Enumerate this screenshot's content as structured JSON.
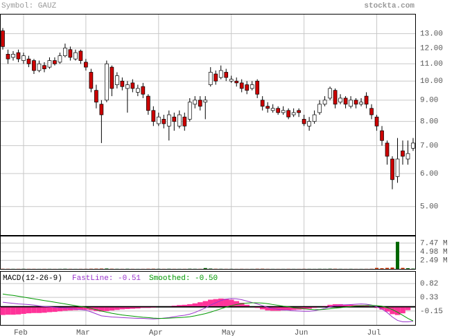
{
  "header": {
    "symbol": "Symbol: GAUZ",
    "site": "stockta.com"
  },
  "chart_data": [
    {
      "type": "candlestick",
      "categories": [
        null,
        null,
        null,
        null,
        "Feb",
        null,
        null,
        null,
        null,
        null,
        null,
        null,
        null,
        null,
        null,
        null,
        "Mar",
        null,
        null,
        null,
        null,
        null,
        null,
        null,
        null,
        null,
        null,
        null,
        null,
        null,
        "Apr",
        null,
        null,
        null,
        null,
        null,
        null,
        null,
        null,
        null,
        null,
        null,
        null,
        null,
        "May",
        null,
        null,
        null,
        null,
        null,
        null,
        null,
        null,
        null,
        null,
        null,
        null,
        null,
        "Jun",
        null,
        null,
        null,
        null,
        null,
        null,
        null,
        null,
        null,
        null,
        null,
        null,
        null,
        "Jul",
        null,
        null,
        null,
        null,
        null,
        null,
        null
      ],
      "open": [
        13.2,
        11.6,
        11.4,
        11.7,
        11.2,
        11.3,
        11.2,
        10.6,
        10.9,
        10.8,
        11.2,
        11.1,
        11.5,
        11.9,
        11.3,
        11.8,
        11.1,
        10.5,
        9.5,
        8.8,
        9.0,
        10.8,
        9.8,
        10.0,
        9.6,
        9.9,
        9.4,
        9.7,
        9.2,
        8.5,
        7.9,
        8.1,
        7.8,
        8.2,
        7.8,
        8.2,
        8.1,
        8.8,
        9.0,
        8.9,
        9.8,
        10.4,
        10.2,
        10.5,
        10.0,
        10.0,
        9.9,
        9.8,
        9.6,
        10.0,
        9.0,
        8.7,
        8.5,
        8.6,
        8.4,
        8.5,
        8.3,
        8.5,
        8.1,
        7.8,
        8.0,
        8.4,
        8.8,
        9.1,
        9.5,
        8.9,
        9.1,
        8.7,
        9.0,
        8.8,
        9.2,
        8.6,
        8.2,
        7.6,
        7.1,
        6.5,
        5.9,
        6.8,
        6.5,
        6.9
      ],
      "high": [
        13.4,
        11.9,
        11.8,
        11.9,
        11.7,
        11.5,
        11.3,
        11.2,
        11.1,
        11.4,
        11.4,
        11.7,
        12.3,
        12.1,
        11.9,
        11.9,
        11.3,
        10.7,
        9.8,
        9.0,
        11.2,
        10.9,
        10.5,
        10.2,
        10.0,
        10.1,
        9.8,
        9.9,
        9.3,
        8.7,
        8.4,
        8.3,
        8.5,
        8.4,
        8.5,
        8.4,
        9.1,
        9.2,
        9.2,
        9.2,
        10.8,
        10.6,
        10.9,
        10.7,
        10.3,
        10.2,
        10.1,
        10.0,
        10.0,
        10.1,
        9.2,
        8.9,
        8.8,
        8.7,
        8.7,
        8.6,
        8.6,
        8.6,
        8.3,
        8.2,
        8.5,
        9.0,
        9.2,
        9.7,
        9.6,
        9.3,
        9.2,
        9.2,
        9.1,
        9.1,
        9.4,
        8.8,
        8.3,
        7.8,
        7.2,
        6.6,
        7.3,
        7.2,
        7.2,
        7.3
      ],
      "low": [
        11.9,
        11.0,
        11.2,
        11.1,
        11.0,
        10.8,
        10.4,
        10.5,
        10.5,
        10.7,
        10.9,
        11.0,
        11.4,
        11.2,
        11.2,
        11.0,
        10.6,
        9.4,
        8.6,
        7.1,
        8.9,
        9.2,
        9.6,
        9.5,
        8.4,
        9.4,
        9.2,
        9.1,
        8.3,
        7.8,
        7.8,
        7.7,
        7.2,
        7.6,
        7.7,
        7.6,
        8.0,
        8.6,
        8.5,
        8.1,
        9.7,
        9.8,
        10.1,
        10.0,
        9.9,
        9.7,
        9.4,
        9.3,
        9.5,
        9.1,
        8.5,
        8.4,
        8.4,
        8.3,
        8.3,
        8.1,
        8.2,
        8.2,
        7.8,
        7.6,
        7.9,
        8.3,
        8.7,
        9.0,
        8.6,
        8.8,
        8.6,
        8.6,
        8.6,
        8.7,
        8.6,
        8.1,
        7.6,
        7.0,
        6.3,
        5.5,
        5.7,
        6.3,
        6.3,
        6.8
      ],
      "close": [
        12.1,
        11.3,
        11.6,
        11.3,
        11.5,
        11.0,
        10.6,
        11.0,
        10.7,
        11.2,
        11.0,
        11.5,
        12.0,
        11.4,
        11.7,
        11.2,
        10.8,
        9.6,
        8.9,
        8.3,
        11.0,
        9.6,
        10.3,
        9.7,
        9.8,
        9.6,
        9.6,
        9.3,
        8.5,
        8.0,
        8.2,
        7.9,
        8.3,
        8.0,
        8.3,
        7.8,
        8.9,
        9.0,
        8.7,
        9.0,
        10.5,
        10.0,
        10.6,
        10.2,
        10.1,
        9.9,
        9.6,
        9.5,
        9.8,
        9.3,
        8.7,
        8.6,
        8.6,
        8.4,
        8.5,
        8.2,
        8.4,
        8.4,
        7.9,
        8.0,
        8.3,
        8.8,
        9.0,
        9.6,
        8.8,
        9.1,
        8.8,
        9.0,
        8.8,
        8.9,
        8.8,
        8.3,
        7.8,
        7.2,
        6.6,
        5.8,
        6.5,
        6.6,
        6.7,
        7.1
      ],
      "up_color": "#ffffff",
      "down_color": "#cc0000",
      "ylim": [
        4.27,
        14.5
      ],
      "log_scale": true,
      "yticks": [
        {
          "value": 13,
          "label": "13.00"
        },
        {
          "value": 12,
          "label": "12.00"
        },
        {
          "value": 11,
          "label": "11.00"
        },
        {
          "value": 10,
          "label": "10.00"
        },
        {
          "value": 9,
          "label": "9.00"
        },
        {
          "value": 8,
          "label": "8.00"
        },
        {
          "value": 7,
          "label": "7.00"
        },
        {
          "value": 6,
          "label": "6.00"
        },
        {
          "value": 5,
          "label": "5.00"
        }
      ],
      "grid": true
    },
    {
      "type": "volume",
      "values": [
        0.05,
        0.04,
        0.03,
        0.03,
        0.04,
        0.03,
        0.03,
        0.02,
        0.03,
        0.03,
        0.02,
        0.03,
        0.05,
        0.03,
        0.02,
        0.03,
        0.03,
        0.06,
        0.08,
        0.1,
        0.12,
        0.06,
        0.04,
        0.03,
        0.05,
        0.03,
        0.02,
        0.03,
        0.05,
        0.06,
        0.04,
        0.03,
        0.05,
        0.03,
        0.03,
        0.03,
        0.06,
        0.04,
        0.03,
        0.25,
        0.1,
        0.05,
        0.04,
        0.03,
        0.03,
        0.02,
        0.03,
        0.02,
        0.02,
        0.05,
        0.06,
        0.03,
        0.02,
        0.02,
        0.02,
        0.03,
        0.02,
        0.02,
        0.03,
        0.03,
        0.02,
        0.04,
        0.03,
        0.06,
        0.05,
        0.03,
        0.02,
        0.03,
        0.02,
        0.02,
        0.03,
        0.05,
        0.3,
        0.2,
        0.3,
        0.4,
        7.85,
        0.3,
        0.2,
        0.1
      ],
      "up_color": "#006600",
      "down_color": "#cc3300",
      "ylim": [
        0,
        9.6
      ],
      "yticks": [
        {
          "value": 7.47,
          "label": "7.47 M"
        },
        {
          "value": 4.98,
          "label": "4.98 M"
        },
        {
          "value": 2.49,
          "label": "2.49 M"
        }
      ],
      "grid": true
    },
    {
      "type": "macd",
      "title": "MACD(12-26-9)",
      "series": [
        {
          "name": "FastLine: -0.51",
          "color": "#9933cc",
          "values": [
            0.16,
            0.14,
            0.12,
            0.1,
            0.09,
            0.08,
            0.06,
            0.03,
            0.01,
            0.0,
            -0.02,
            -0.03,
            -0.04,
            -0.06,
            -0.08,
            -0.1,
            -0.12,
            -0.18,
            -0.25,
            -0.32,
            -0.34,
            -0.36,
            -0.37,
            -0.38,
            -0.39,
            -0.4,
            -0.41,
            -0.41,
            -0.42,
            -0.43,
            -0.42,
            -0.4,
            -0.38,
            -0.35,
            -0.32,
            -0.3,
            -0.26,
            -0.2,
            -0.12,
            -0.04,
            0.06,
            0.14,
            0.22,
            0.27,
            0.29,
            0.28,
            0.25,
            0.2,
            0.15,
            0.1,
            0.04,
            -0.02,
            -0.06,
            -0.09,
            -0.11,
            -0.12,
            -0.14,
            -0.15,
            -0.16,
            -0.16,
            -0.14,
            -0.1,
            -0.06,
            0.0,
            0.04,
            0.06,
            0.07,
            0.08,
            0.09,
            0.1,
            0.09,
            0.06,
            0.0,
            -0.08,
            -0.2,
            -0.36,
            -0.48,
            -0.53,
            -0.53,
            -0.51
          ]
        },
        {
          "name": "Smoothed: -0.50",
          "color": "#009900",
          "values": [
            0.45,
            0.42,
            0.4,
            0.37,
            0.34,
            0.31,
            0.28,
            0.25,
            0.22,
            0.19,
            0.16,
            0.13,
            0.1,
            0.07,
            0.04,
            0.01,
            -0.02,
            -0.06,
            -0.1,
            -0.15,
            -0.19,
            -0.23,
            -0.26,
            -0.29,
            -0.31,
            -0.33,
            -0.35,
            -0.37,
            -0.38,
            -0.4,
            -0.41,
            -0.41,
            -0.4,
            -0.39,
            -0.38,
            -0.37,
            -0.35,
            -0.32,
            -0.28,
            -0.24,
            -0.19,
            -0.13,
            -0.07,
            -0.01,
            0.04,
            0.08,
            0.11,
            0.13,
            0.14,
            0.14,
            0.13,
            0.11,
            0.08,
            0.05,
            0.02,
            0.0,
            -0.03,
            -0.05,
            -0.07,
            -0.09,
            -0.1,
            -0.1,
            -0.09,
            -0.07,
            -0.05,
            -0.03,
            -0.01,
            0.01,
            0.03,
            0.04,
            0.05,
            0.05,
            0.04,
            0.02,
            -0.03,
            -0.1,
            -0.19,
            -0.3,
            -0.41,
            -0.5
          ]
        },
        {
          "color": "#ff3399",
          "values": [
            -0.29,
            -0.28,
            -0.28,
            -0.27,
            -0.25,
            -0.23,
            -0.22,
            -0.22,
            -0.21,
            -0.19,
            -0.18,
            -0.16,
            -0.14,
            -0.13,
            -0.12,
            -0.11,
            -0.1,
            -0.12,
            -0.15,
            -0.17,
            -0.15,
            -0.13,
            -0.11,
            -0.09,
            -0.08,
            -0.07,
            -0.06,
            -0.04,
            -0.04,
            -0.03,
            -0.01,
            0.01,
            0.02,
            0.04,
            0.06,
            0.07,
            0.09,
            0.12,
            0.16,
            0.2,
            0.25,
            0.27,
            0.29,
            0.28,
            0.25,
            0.2,
            0.14,
            0.07,
            0.01,
            -0.04,
            -0.09,
            -0.13,
            -0.14,
            -0.14,
            -0.13,
            -0.12,
            -0.11,
            -0.1,
            -0.09,
            -0.07,
            -0.04,
            0.0,
            0.03,
            0.07,
            0.09,
            0.09,
            0.08,
            0.07,
            0.06,
            0.06,
            0.04,
            0.01,
            -0.04,
            -0.1,
            -0.17,
            -0.26,
            -0.29,
            -0.23,
            -0.12,
            -0.01
          ]
        }
      ],
      "ylim": [
        -0.64,
        1.26
      ],
      "yticks": [
        0.82,
        0.33,
        -0.15
      ],
      "grid": true
    }
  ]
}
